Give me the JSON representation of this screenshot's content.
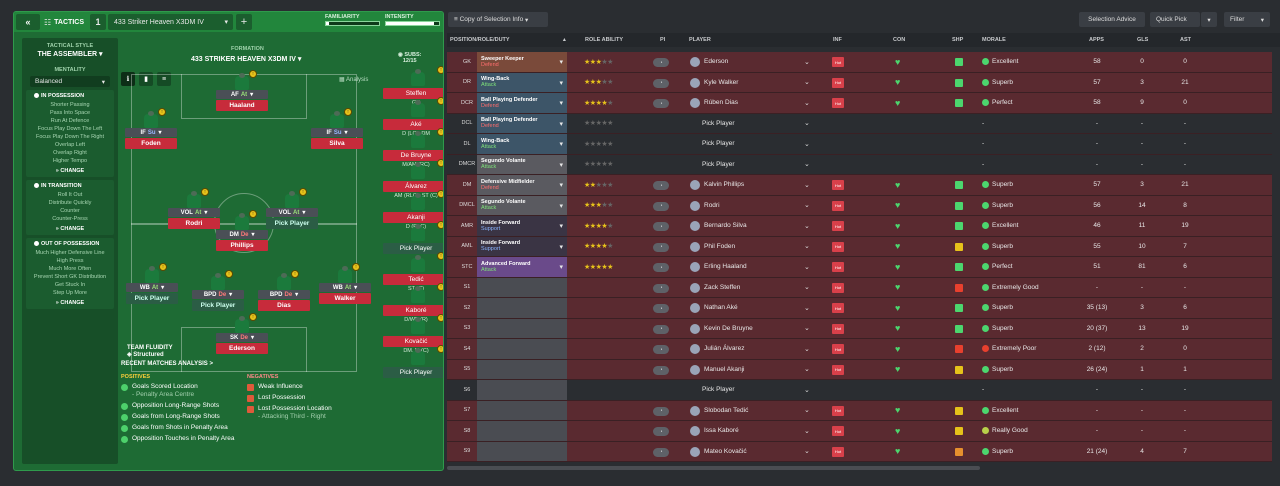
{
  "topbar": {
    "tactics": "TACTICS",
    "slot": "1",
    "tactic_name": "433 Striker Heaven X3DM IV",
    "familiarity_label": "FAMILIARITY",
    "familiarity": 0.05,
    "intensity_label": "INTENSITY",
    "intensity": 0.9
  },
  "sidebar": {
    "style_label": "TACTICAL STYLE",
    "style": "THE ASSEMBLER",
    "mentality_label": "MENTALITY",
    "mentality": "Balanced",
    "possession_title": "IN POSSESSION",
    "possession": [
      "Shorter Passing",
      "Pass Into Space",
      "Run At Defence",
      "Focus Play Down The Left",
      "Focus Play Down The Right",
      "Overlap Left",
      "Overlap Right",
      "Higher Tempo"
    ],
    "transition_title": "IN TRANSITION",
    "transition": [
      "Roll It Out",
      "Distribute Quickly",
      "Counter",
      "Counter-Press"
    ],
    "oop_title": "OUT OF POSSESSION",
    "oop": [
      "Much Higher Defensive Line",
      "High Press",
      "Much More Often",
      "Prevent Short GK Distribution",
      "Get Stuck In",
      "Step Up More"
    ],
    "change": "CHANGE"
  },
  "pitch": {
    "formation_label": "FORMATION",
    "formation": "433 STRIKER HEAVEN X3DM IV",
    "subs_label": "SUBS:",
    "subs_count": "12/15",
    "analysis": "Analysis",
    "fluidity_label": "TEAM FLUIDITY",
    "fluidity": "Structured"
  },
  "players": {
    "af": {
      "role": "AF",
      "duty": "At",
      "name": "Haaland"
    },
    "ifl": {
      "role": "IF",
      "duty": "Su",
      "name": "Foden"
    },
    "ifr": {
      "role": "IF",
      "duty": "Su",
      "name": "Silva"
    },
    "voll": {
      "role": "VOL",
      "duty": "At",
      "name": "Rodri"
    },
    "volr": {
      "role": "VOL",
      "duty": "At",
      "name": "Pick Player"
    },
    "dm": {
      "role": "DM",
      "duty": "De",
      "name": "Phillips"
    },
    "wbl": {
      "role": "WB",
      "duty": "At",
      "name": "Pick Player"
    },
    "bpdl": {
      "role": "BPD",
      "duty": "De",
      "name": "Pick Player"
    },
    "bpdr": {
      "role": "BPD",
      "duty": "De",
      "name": "Dias"
    },
    "wbr": {
      "role": "WB",
      "duty": "At",
      "name": "Walker"
    },
    "sk": {
      "role": "SK",
      "duty": "De",
      "name": "Ederson"
    }
  },
  "subs": [
    {
      "name": "Steffen",
      "pos": "GK"
    },
    {
      "name": "Aké",
      "pos": "D (LC), DM"
    },
    {
      "name": "De Bruyne",
      "pos": "M/AM (RC)"
    },
    {
      "name": "Álvarez",
      "pos": "AM (RLC), ST (C)"
    },
    {
      "name": "Akanji",
      "pos": "D (RLC)"
    },
    {
      "name": "Pick Player",
      "pos": ""
    },
    {
      "name": "Tedić",
      "pos": "ST (C)"
    },
    {
      "name": "Kaboré",
      "pos": "D/WB (R)"
    },
    {
      "name": "Kovačić",
      "pos": "DM, M (C)"
    },
    {
      "name": "Pick Player",
      "pos": ""
    }
  ],
  "analysis": {
    "title": "RECENT MATCHES ANALYSIS >",
    "pos_title": "POSITIVES",
    "positives": [
      {
        "t": "Goals Scored Location",
        "s": "- Penalty Area Centre"
      },
      {
        "t": "Opposition Long-Range Shots",
        "s": ""
      },
      {
        "t": "Goals from Long-Range Shots",
        "s": ""
      },
      {
        "t": "Goals from Shots in Penalty Area",
        "s": ""
      },
      {
        "t": "Opposition Touches in Penalty Area",
        "s": ""
      }
    ],
    "neg_title": "NEGATIVES",
    "negatives": [
      {
        "t": "Weak Influence",
        "s": ""
      },
      {
        "t": "Lost Possession",
        "s": ""
      },
      {
        "t": "Lost Possession Location",
        "s": "- Attacking Third - Right"
      }
    ]
  },
  "right_top": {
    "view": "Copy of Selection Info",
    "selection_advice": "Selection Advice",
    "quick_pick": "Quick Pick",
    "filter": "Filter"
  },
  "columns": {
    "pos": "POSITION/ROLE/DUTY",
    "ability": "ROLE ABILITY",
    "pi": "PI",
    "player": "PLAYER",
    "inf": "INF",
    "con": "CON",
    "shp": "SHP",
    "morale": "MORALE",
    "apps": "APPS",
    "gls": "GLS",
    "ast": "AST"
  },
  "rows": [
    {
      "pos": "GK",
      "role": "Sweeper Keeper",
      "duty": "Defend",
      "stars": 3,
      "player": "Ederson",
      "morale": "Excellent",
      "apps": "58",
      "gls": "0",
      "ast": "0"
    },
    {
      "pos": "DR",
      "role": "Wing-Back",
      "duty": "Attack",
      "stars": 3,
      "player": "Kyle Walker",
      "morale": "Superb",
      "apps": "57",
      "gls": "3",
      "ast": "21"
    },
    {
      "pos": "DCR",
      "role": "Ball Playing Defender",
      "duty": "Defend",
      "stars": 4,
      "player": "Rúben Dias",
      "morale": "Perfect",
      "apps": "58",
      "gls": "9",
      "ast": "0"
    },
    {
      "pos": "DCL",
      "role": "Ball Playing Defender",
      "duty": "Defend",
      "stars": 0,
      "player": "Pick Player",
      "morale": "-",
      "apps": "-",
      "gls": "-",
      "ast": "-"
    },
    {
      "pos": "DL",
      "role": "Wing-Back",
      "duty": "Attack",
      "stars": 0,
      "player": "Pick Player",
      "morale": "-",
      "apps": "-",
      "gls": "-",
      "ast": "-"
    },
    {
      "pos": "DMCR",
      "role": "Segundo Volante",
      "duty": "Attack",
      "stars": 0,
      "player": "Pick Player",
      "morale": "-",
      "apps": "-",
      "gls": "-",
      "ast": "-"
    },
    {
      "pos": "DM",
      "role": "Defensive Midfielder",
      "duty": "Defend",
      "stars": 2,
      "player": "Kalvin Phillips",
      "morale": "Superb",
      "apps": "57",
      "gls": "3",
      "ast": "21"
    },
    {
      "pos": "DMCL",
      "role": "Segundo Volante",
      "duty": "Attack",
      "stars": 3,
      "player": "Rodri",
      "morale": "Superb",
      "apps": "56",
      "gls": "14",
      "ast": "8"
    },
    {
      "pos": "AMR",
      "role": "Inside Forward",
      "duty": "Support",
      "stars": 4,
      "player": "Bernardo Silva",
      "morale": "Excellent",
      "apps": "46",
      "gls": "11",
      "ast": "19"
    },
    {
      "pos": "AML",
      "role": "Inside Forward",
      "duty": "Support",
      "stars": 4,
      "player": "Phil Foden",
      "morale": "Superb",
      "apps": "55",
      "gls": "10",
      "ast": "7"
    },
    {
      "pos": "STC",
      "role": "Advanced Forward",
      "duty": "Attack",
      "stars": 5,
      "player": "Erling Haaland",
      "morale": "Perfect",
      "apps": "51",
      "gls": "81",
      "ast": "6"
    },
    {
      "pos": "S1",
      "role": "",
      "duty": "",
      "stars": -1,
      "player": "Zack Steffen",
      "morale": "Extremely Good",
      "apps": "-",
      "gls": "-",
      "ast": "-"
    },
    {
      "pos": "S2",
      "role": "",
      "duty": "",
      "stars": -1,
      "player": "Nathan Aké",
      "morale": "Superb",
      "apps": "35 (13)",
      "gls": "3",
      "ast": "6"
    },
    {
      "pos": "S3",
      "role": "",
      "duty": "",
      "stars": -1,
      "player": "Kevin De Bruyne",
      "morale": "Superb",
      "apps": "20 (37)",
      "gls": "13",
      "ast": "19"
    },
    {
      "pos": "S4",
      "role": "",
      "duty": "",
      "stars": -1,
      "player": "Julián Álvarez",
      "morale": "Extremely Poor",
      "apps": "2 (12)",
      "gls": "2",
      "ast": "0"
    },
    {
      "pos": "S5",
      "role": "",
      "duty": "",
      "stars": -1,
      "player": "Manuel Akanji",
      "morale": "Superb",
      "apps": "26 (24)",
      "gls": "1",
      "ast": "1"
    },
    {
      "pos": "S6",
      "role": "",
      "duty": "",
      "stars": -1,
      "player": "Pick Player",
      "morale": "-",
      "apps": "-",
      "gls": "-",
      "ast": "-"
    },
    {
      "pos": "S7",
      "role": "",
      "duty": "",
      "stars": -1,
      "player": "Slobodan Tedić",
      "morale": "Excellent",
      "apps": "-",
      "gls": "-",
      "ast": "-"
    },
    {
      "pos": "S8",
      "role": "",
      "duty": "",
      "stars": -1,
      "player": "Issa Kaboré",
      "morale": "Really Good",
      "apps": "-",
      "gls": "-",
      "ast": "-"
    },
    {
      "pos": "S9",
      "role": "",
      "duty": "",
      "stars": -1,
      "player": "Mateo Kovačić",
      "morale": "Superb",
      "apps": "21 (24)",
      "gls": "4",
      "ast": "7"
    }
  ],
  "hot_label": "Hot",
  "colors": {
    "green": "#22863c",
    "red_row": "#5a2a30",
    "accent_red": "#c72b3b",
    "yellow": "#e6c21a"
  }
}
